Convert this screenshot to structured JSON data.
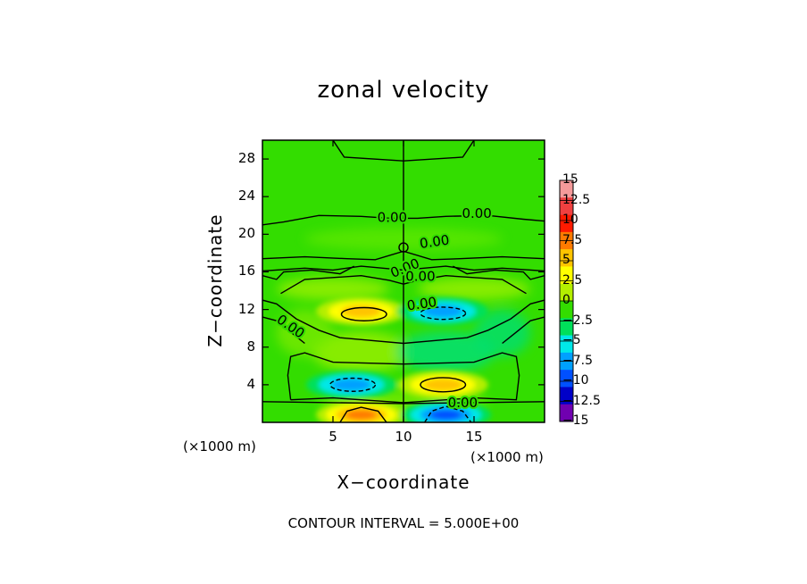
{
  "chart_data": {
    "type": "heatmap",
    "title": "zonal velocity",
    "xlabel": "X−coordinate",
    "ylabel": "Z−coordinate",
    "x_unit": "(×1000 m)",
    "xlim": [
      0,
      20
    ],
    "ylim": [
      0,
      30
    ],
    "xticks": [
      5,
      10,
      15
    ],
    "xtick_labels": [
      "5",
      "10",
      "15"
    ],
    "yticks": [
      4,
      8,
      12,
      16,
      20,
      24,
      28
    ],
    "ytick_labels": [
      "4",
      "8",
      "12",
      "16",
      "20",
      "24",
      "28"
    ],
    "contour_interval_text": "CONTOUR INTERVAL = 5.000E+00",
    "contour_labels": [
      "0.00",
      "0.00",
      "0.00",
      "0.00",
      "0.00",
      "0.00",
      "0.00",
      "0.00"
    ],
    "colorbar": {
      "levels": [
        15,
        12.5,
        10,
        7.5,
        5,
        2.5,
        0,
        -2.5,
        -5,
        -7.5,
        -10,
        -12.5,
        -15
      ],
      "labels": [
        "15",
        "12.5",
        "10",
        "7.5",
        "5",
        "2.5",
        "0",
        "−2.5",
        "−5",
        "−7.5",
        "−10",
        "−12.5",
        "−15"
      ],
      "colors": [
        "#f59a9a",
        "#f04040",
        "#ff1a00",
        "#ff7a00",
        "#ffc400",
        "#ffff00",
        "#b4ef00",
        "#33dd00",
        "#00e05a",
        "#00e8e8",
        "#00a0ff",
        "#0050ff",
        "#0000c8",
        "#7000b0"
      ]
    },
    "features": [
      {
        "x": 7.0,
        "z": 11.8,
        "value": 7.5,
        "sign": "positive"
      },
      {
        "x": 12.8,
        "z": 11.8,
        "value": -7.5,
        "sign": "negative"
      },
      {
        "x": 6.3,
        "z": 4.0,
        "value": -7.5,
        "sign": "negative"
      },
      {
        "x": 12.8,
        "z": 4.0,
        "value": 7.5,
        "sign": "positive"
      },
      {
        "x": 7.0,
        "z": 0.8,
        "value": 10,
        "sign": "positive"
      },
      {
        "x": 13.0,
        "z": 0.8,
        "value": -10,
        "sign": "negative"
      }
    ],
    "background_color": "#33dd00"
  }
}
